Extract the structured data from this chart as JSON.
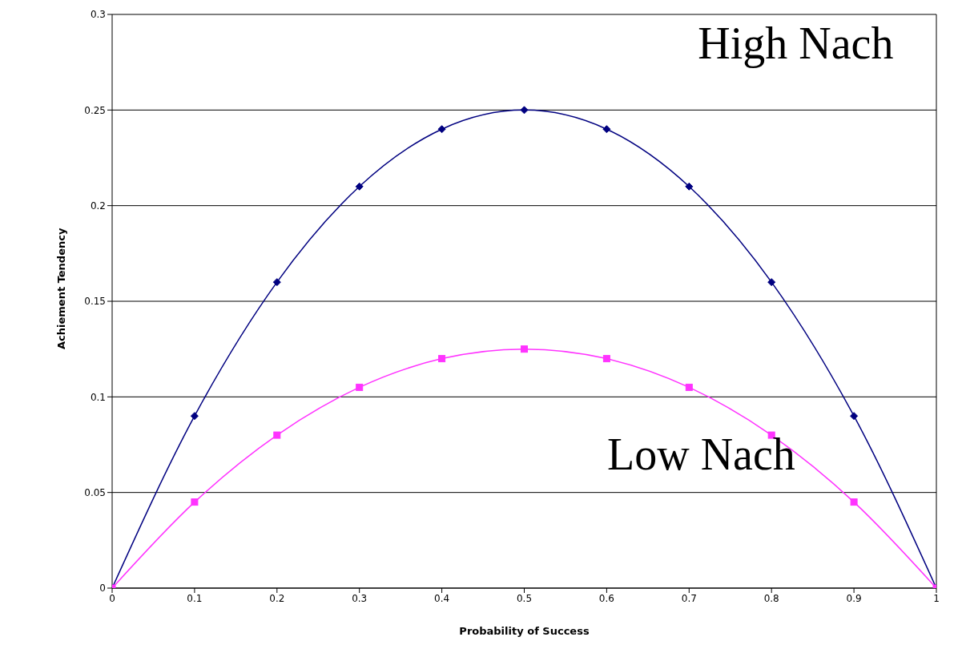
{
  "chart_data": {
    "type": "line",
    "xlabel": "Probability of Success",
    "ylabel": "Achiement Tendency",
    "x": [
      0,
      0.1,
      0.2,
      0.3,
      0.4,
      0.5,
      0.6,
      0.7,
      0.8,
      0.9,
      1
    ],
    "series": [
      {
        "name": "High Nach",
        "color": "#000080",
        "marker": "diamond",
        "values": [
          0,
          0.09,
          0.16,
          0.21,
          0.24,
          0.25,
          0.24,
          0.21,
          0.16,
          0.09,
          0
        ]
      },
      {
        "name": "Low Nach",
        "color": "#ff33ff",
        "marker": "square",
        "values": [
          0,
          0.045,
          0.08,
          0.105,
          0.12,
          0.125,
          0.12,
          0.105,
          0.08,
          0.045,
          0
        ]
      }
    ],
    "xlim": [
      0,
      1
    ],
    "xticks": [
      0,
      0.1,
      0.2,
      0.3,
      0.4,
      0.5,
      0.6,
      0.7,
      0.8,
      0.9,
      1
    ],
    "ylim": [
      0,
      0.3
    ],
    "yticks": [
      0,
      0.05,
      0.1,
      0.15,
      0.2,
      0.25,
      0.3
    ],
    "grid": "y",
    "legend": false
  }
}
